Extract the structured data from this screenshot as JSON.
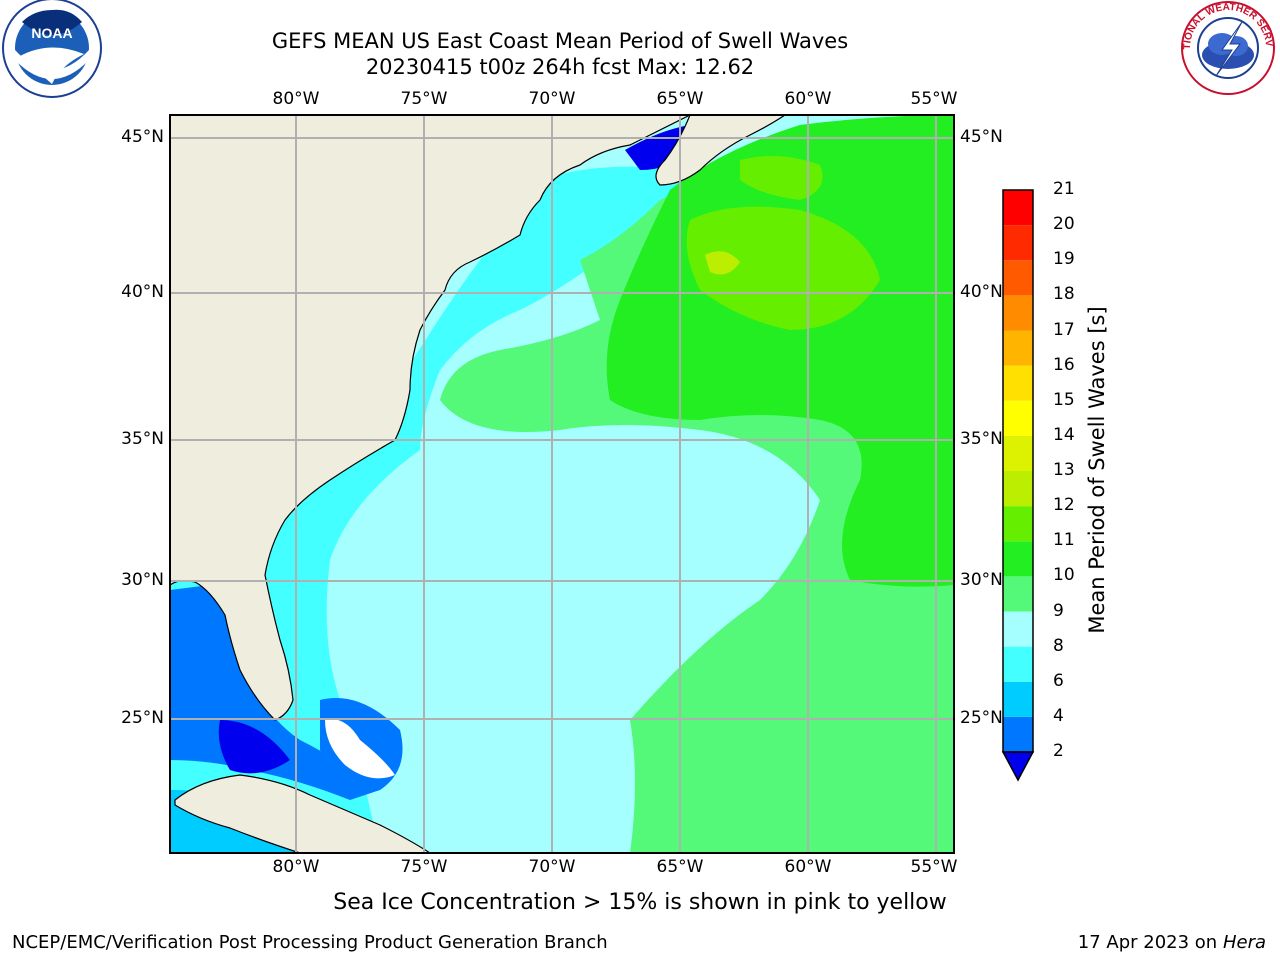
{
  "header": {
    "title_line1": "GEFS MEAN US East Coast Mean Period of Swell Waves",
    "title_line2": "20230415 t00z 264h fcst   Max: 12.62"
  },
  "logos": {
    "left": {
      "icon": "noaa-logo-icon",
      "text": "NOAA"
    },
    "right": {
      "icon": "nws-logo-icon",
      "text": "NATIONAL WEATHER SERVICE"
    }
  },
  "map": {
    "lon_labels": [
      "80°W",
      "75°W",
      "70°W",
      "65°W",
      "60°W",
      "55°W"
    ],
    "lat_labels": [
      "45°N",
      "40°N",
      "35°N",
      "30°N",
      "25°N"
    ],
    "land_color": "#efedde",
    "grid_color": "#b0b0b0"
  },
  "colorbar": {
    "label": "Mean Period of Swell Waves [s]",
    "ticks": [
      "2",
      "4",
      "6",
      "8",
      "9",
      "10",
      "11",
      "12",
      "13",
      "14",
      "15",
      "16",
      "17",
      "18",
      "19",
      "20",
      "21"
    ],
    "colors": [
      "#0077ff",
      "#00ccff",
      "#44ffff",
      "#a6ffff",
      "#55f97a",
      "#22ee22",
      "#66ee00",
      "#bbee00",
      "#ddf200",
      "#ffff00",
      "#ffe000",
      "#ffb400",
      "#ff8c00",
      "#ff5a00",
      "#ff2a00",
      "#ff0000"
    ],
    "under_color": "#0000ee"
  },
  "caption": "Sea Ice Concentration > 15% is shown in pink to yellow",
  "footer": {
    "left": "NCEP/EMC/Verification Post Processing Product Generation Branch",
    "date": "17 Apr 2023",
    "on": "on",
    "machine": "Hera"
  }
}
